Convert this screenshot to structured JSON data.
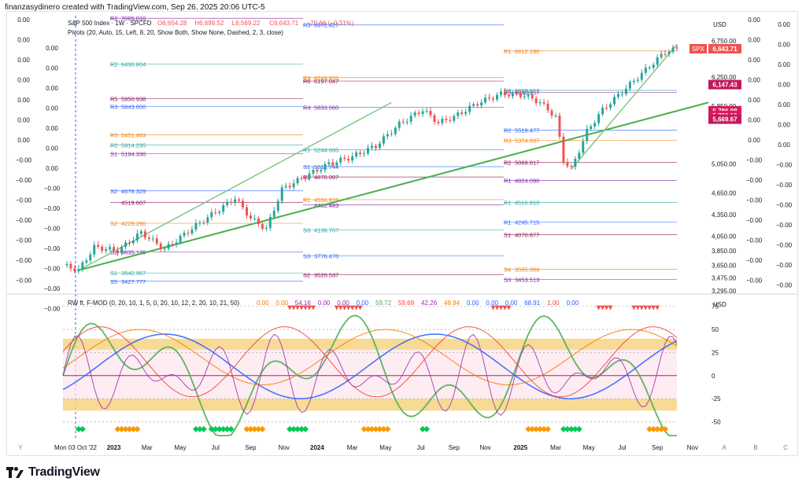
{
  "header": {
    "created_by": "finanzasydinero created with TradingView.com, Sep 26, 2025 20:06 UTC-5"
  },
  "main_title": "S&P 500 Index · 1W · SPCFD",
  "ohlc": {
    "o": "O6,654.28",
    "h": "H6,699.52",
    "l": "L6,569.22",
    "c": "C6,643.71",
    "chg": "−20.66 (−0.31%)"
  },
  "pivots_label": "Pivots (20, Auto, 15, Left, 8, 20, Show Both, Show None, Dashed, 2, 3, close)",
  "osc_label": "RW ft. F-MOD (0, 20, 10, 1, 5, 0, 20, 10, 12, 2, 20, 10, 21, 50)",
  "osc_values": [
    "0.00",
    "0.00",
    "54.16",
    "0.00",
    "0.00",
    "0.00",
    "59.72",
    "59.69",
    "42.26",
    "48.94",
    "0.00",
    "0.00",
    "0.00",
    "68.91",
    "1.00",
    "0.00"
  ],
  "currency": "USD",
  "colors": {
    "up": "#26a69a",
    "down": "#ef5350",
    "trend": "#4caf50",
    "pivot_purple": "#7b1fa2",
    "pivot_blue": "#2962ff",
    "pivot_orange": "#f57c00"
  },
  "chart_data": [
    {
      "type": "candlestick",
      "ylim": [
        3295,
        7100
      ],
      "y_ticks": [
        "6,750.00",
        "6,250.00",
        "5,850.00",
        "5,050.00",
        "4,650.00",
        "4,350.00",
        "4,050.00",
        "3,850.00",
        "3,650.00",
        "3,475.00",
        "3,295.00"
      ],
      "x_ticks": [
        "2023",
        "Mar",
        "May",
        "Jul",
        "Sep",
        "Nov",
        "2024",
        "Mar",
        "May",
        "Jul",
        "Sep",
        "Nov",
        "2025",
        "Mar",
        "May",
        "Jul",
        "Sep",
        "Nov"
      ],
      "x_start_label": "Mon 03 Oct '22",
      "path": [
        [
          0,
          3650
        ],
        [
          4,
          3580
        ],
        [
          8,
          3900
        ],
        [
          14,
          3850
        ],
        [
          20,
          4100
        ],
        [
          26,
          3870
        ],
        [
          34,
          4200
        ],
        [
          40,
          4420
        ],
        [
          44,
          4580
        ],
        [
          48,
          4300
        ],
        [
          52,
          4150
        ],
        [
          56,
          4700
        ],
        [
          62,
          4880
        ],
        [
          68,
          5050
        ],
        [
          74,
          5150
        ],
        [
          80,
          5300
        ],
        [
          86,
          5600
        ],
        [
          92,
          5800
        ],
        [
          96,
          5620
        ],
        [
          100,
          5700
        ],
        [
          106,
          5890
        ],
        [
          112,
          6020
        ],
        [
          118,
          6000
        ],
        [
          122,
          5900
        ],
        [
          126,
          5700
        ],
        [
          128,
          5100
        ],
        [
          130,
          4980
        ],
        [
          134,
          5500
        ],
        [
          138,
          5800
        ],
        [
          142,
          6000
        ],
        [
          146,
          6200
        ],
        [
          150,
          6400
        ],
        [
          154,
          6600
        ],
        [
          157,
          6643.71
        ]
      ],
      "price_badges": [
        {
          "label": "SPX",
          "value": "6,643.71",
          "color": "#ef5350"
        },
        {
          "label": "",
          "value": "6,147.43",
          "color": "#c2185b"
        },
        {
          "label": "",
          "value": "5,786.08",
          "color": "#d81b60"
        },
        {
          "label": "",
          "value": "5,720.10",
          "color": "#d81b60"
        },
        {
          "label": "",
          "value": "5,669.67",
          "color": "#c2185b"
        }
      ],
      "pivot_levels": [
        {
          "name": "R2",
          "value": "7065.010"
        },
        {
          "name": "R3",
          "value": "6972.427"
        },
        {
          "name": "R1",
          "value": "6612.190"
        },
        {
          "name": "R2",
          "value": "6430.804"
        },
        {
          "name": "R6",
          "value": "6197.047"
        },
        {
          "name": "R5",
          "value": "6040.457"
        },
        {
          "name": "R3",
          "value": "5843.850"
        },
        {
          "name": "R3",
          "value": "6243.655"
        },
        {
          "name": "R6",
          "value": "6068.817"
        },
        {
          "name": "R5",
          "value": "5950.938"
        },
        {
          "name": "R4",
          "value": "5833.060"
        },
        {
          "name": "R2",
          "value": "5518.477"
        },
        {
          "name": "R3",
          "value": "5451.463"
        },
        {
          "name": "R1",
          "value": "5244.685"
        },
        {
          "name": "R2",
          "value": "5069.817"
        },
        {
          "name": "S1",
          "value": "5194.330"
        },
        {
          "name": "S1",
          "value": "5012.744"
        },
        {
          "name": "R3",
          "value": "5374.937"
        },
        {
          "name": "R2",
          "value": "5314.235"
        },
        {
          "name": "R2",
          "value": "4870.007"
        },
        {
          "name": "R1",
          "value": "4824.090"
        },
        {
          "name": "S2",
          "value": "4678.329"
        },
        {
          "name": "R1",
          "value": "4556.826"
        },
        {
          "name": "R1",
          "value": "4516.810"
        },
        {
          "name": "",
          "value": "4519.607"
        },
        {
          "name": "",
          "value": "4482.483"
        },
        {
          "name": "R1",
          "value": "4245.715"
        },
        {
          "name": "S2",
          "value": "4229.290"
        },
        {
          "name": "S3",
          "value": "4136.707"
        },
        {
          "name": "S1",
          "value": "4070.877"
        },
        {
          "name": "S2",
          "value": "3835.120"
        },
        {
          "name": "S3",
          "value": "3776.470"
        },
        {
          "name": "S4",
          "value": "3595.084"
        },
        {
          "name": "S1",
          "value": "3542.967"
        },
        {
          "name": "S2",
          "value": "3520.537"
        },
        {
          "name": "S3",
          "value": "3453.513"
        },
        {
          "name": "S5",
          "value": "3427.777"
        }
      ],
      "left_axis": [
        "0.00",
        "0.00",
        "0.00",
        "0.00",
        "0.00",
        "0.00",
        "0.00",
        "−0.00",
        "−0.00",
        "−0.00",
        "−0.00",
        "−0.00",
        "−0.00",
        "−0.00"
      ],
      "right_axis": [
        "0.00",
        "0.00",
        "0.00",
        "0.00",
        "0.00",
        "0.00",
        "0.00",
        "−0.00",
        "−0.00",
        "−0.00",
        "−0.00",
        "−0.00",
        "−0.00",
        "−0.00"
      ]
    },
    {
      "type": "line",
      "ylim": [
        -70,
        85
      ],
      "y_ticks": [
        75,
        50,
        25,
        0,
        -25,
        -50
      ],
      "bottom_letters": [
        "Y",
        "A",
        "B",
        "C"
      ]
    }
  ]
}
